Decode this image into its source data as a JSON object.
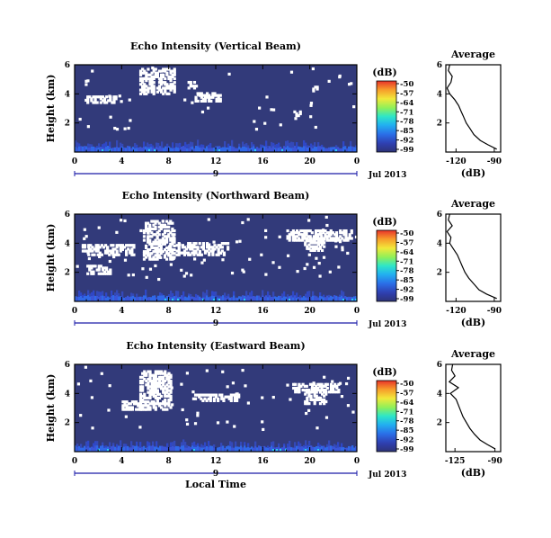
{
  "chart_data": [
    {
      "type": "heatmap",
      "title": "Echo Intensity (Vertical Beam)",
      "ylabel": "Height (km)",
      "x_ticks": [
        "0",
        "4",
        "8",
        "12",
        "16",
        "20",
        "0"
      ],
      "y_ticks": [
        "2",
        "4",
        "6"
      ],
      "date_day": "9",
      "date_label": "Jul 2013",
      "xlim": [
        0,
        24
      ],
      "ylim": [
        0,
        6
      ],
      "colorbar": {
        "label": "(dB)",
        "ticks": [
          "-50",
          "-57",
          "-64",
          "-71",
          "-78",
          "-85",
          "-92",
          "-99"
        ],
        "range": [
          -99,
          -50
        ]
      },
      "white_regions": [
        {
          "t0": 5.5,
          "t1": 8.5,
          "h0": 4.1,
          "h1": 5.9
        },
        {
          "t0": 1.0,
          "t1": 3.5,
          "h0": 3.5,
          "h1": 3.9
        },
        {
          "t0": 10.2,
          "t1": 12.4,
          "h0": 3.6,
          "h1": 4.2
        },
        {
          "t0": 9.6,
          "t1": 10.4,
          "h0": 4.5,
          "h1": 4.9
        },
        {
          "t0": 18.6,
          "t1": 19.2,
          "h0": 2.6,
          "h1": 2.9
        },
        {
          "t0": 20.2,
          "t1": 20.7,
          "h0": 4.3,
          "h1": 4.6
        }
      ],
      "white_density": 0.04,
      "average": {
        "title": "Average",
        "xlabel": "(dB)",
        "x_ticks": [
          "-120",
          "-90"
        ],
        "y_ticks": [
          "2",
          "4",
          "6"
        ],
        "xlim": [
          -128,
          -85
        ],
        "ylim": [
          0,
          6
        ],
        "profile_db": [
          -88,
          -95,
          -101,
          -106,
          -109,
          -112,
          -114,
          -116,
          -118,
          -121,
          -125,
          -127,
          -124,
          -123,
          -126,
          -125
        ],
        "profile_h": [
          0.2,
          0.5,
          0.8,
          1.2,
          1.6,
          2.0,
          2.4,
          2.8,
          3.2,
          3.6,
          4.0,
          4.4,
          4.8,
          5.2,
          5.6,
          6.0
        ]
      }
    },
    {
      "type": "heatmap",
      "title": "Echo Intensity (Northward Beam)",
      "ylabel": "Height (km)",
      "x_ticks": [
        "0",
        "4",
        "8",
        "12",
        "16",
        "20",
        "0"
      ],
      "y_ticks": [
        "2",
        "4",
        "6"
      ],
      "date_day": "9",
      "date_label": "Jul 2013",
      "xlim": [
        0,
        24
      ],
      "ylim": [
        0,
        6
      ],
      "colorbar": {
        "label": "(dB)",
        "ticks": [
          "-50",
          "-57",
          "-64",
          "-71",
          "-78",
          "-85",
          "-92",
          "-99"
        ],
        "range": [
          -99,
          -50
        ]
      },
      "white_regions": [
        {
          "t0": 5.8,
          "t1": 8.4,
          "h0": 3.0,
          "h1": 5.7
        },
        {
          "t0": 0.6,
          "t1": 5.0,
          "h0": 3.3,
          "h1": 4.0
        },
        {
          "t0": 8.6,
          "t1": 13.0,
          "h0": 3.3,
          "h1": 4.1
        },
        {
          "t0": 18.0,
          "t1": 23.5,
          "h0": 4.3,
          "h1": 5.0
        },
        {
          "t0": 19.5,
          "t1": 21.2,
          "h0": 3.6,
          "h1": 4.4
        },
        {
          "t0": 1.0,
          "t1": 3.0,
          "h0": 2.0,
          "h1": 2.6
        }
      ],
      "white_density": 0.08,
      "average": {
        "title": "Average",
        "xlabel": "(dB)",
        "x_ticks": [
          "-120",
          "-90"
        ],
        "y_ticks": [
          "2",
          "4",
          "6"
        ],
        "xlim": [
          -128,
          -85
        ],
        "ylim": [
          0,
          6
        ],
        "profile_db": [
          -88,
          -96,
          -102,
          -106,
          -110,
          -113,
          -115,
          -117,
          -119,
          -122,
          -125,
          -124,
          -127,
          -123,
          -126,
          -125
        ],
        "profile_h": [
          0.2,
          0.5,
          0.8,
          1.2,
          1.6,
          2.0,
          2.4,
          2.8,
          3.2,
          3.6,
          4.0,
          4.4,
          4.8,
          5.2,
          5.6,
          6.0
        ]
      }
    },
    {
      "type": "heatmap",
      "title": "Echo Intensity (Eastward Beam)",
      "ylabel": "Height (km)",
      "x_ticks": [
        "0",
        "4",
        "8",
        "12",
        "16",
        "20",
        "0"
      ],
      "y_ticks": [
        "2",
        "4",
        "6"
      ],
      "xlabel": "Local Time",
      "date_day": "9",
      "date_label": "Jul 2013",
      "xlim": [
        0,
        24
      ],
      "ylim": [
        0,
        6
      ],
      "colorbar": {
        "label": "(dB)",
        "ticks": [
          "-50",
          "-57",
          "-64",
          "-71",
          "-78",
          "-85",
          "-92",
          "-99"
        ],
        "range": [
          -99,
          -50
        ]
      },
      "white_regions": [
        {
          "t0": 5.5,
          "t1": 8.2,
          "h0": 3.0,
          "h1": 5.7
        },
        {
          "t0": 19.5,
          "t1": 21.3,
          "h0": 3.4,
          "h1": 4.4
        },
        {
          "t0": 18.5,
          "t1": 22.5,
          "h0": 4.2,
          "h1": 4.8
        },
        {
          "t0": 10.0,
          "t1": 14.0,
          "h0": 3.6,
          "h1": 4.1
        },
        {
          "t0": 4.0,
          "t1": 6.0,
          "h0": 3.0,
          "h1": 3.6
        }
      ],
      "white_density": 0.05,
      "average": {
        "title": "Average",
        "xlabel": "(dB)",
        "x_ticks": [
          "-125",
          "-90"
        ],
        "y_ticks": [
          "2",
          "4",
          "6"
        ],
        "xlim": [
          -133,
          -85
        ],
        "ylim": [
          0,
          6
        ],
        "profile_db": [
          -90,
          -97,
          -103,
          -108,
          -112,
          -115,
          -118,
          -120,
          -122,
          -124,
          -129,
          -122,
          -130,
          -125,
          -128,
          -127
        ],
        "profile_h": [
          0.2,
          0.5,
          0.8,
          1.2,
          1.6,
          2.0,
          2.4,
          2.8,
          3.2,
          3.6,
          4.0,
          4.4,
          4.8,
          5.2,
          5.6,
          6.0
        ]
      }
    }
  ]
}
